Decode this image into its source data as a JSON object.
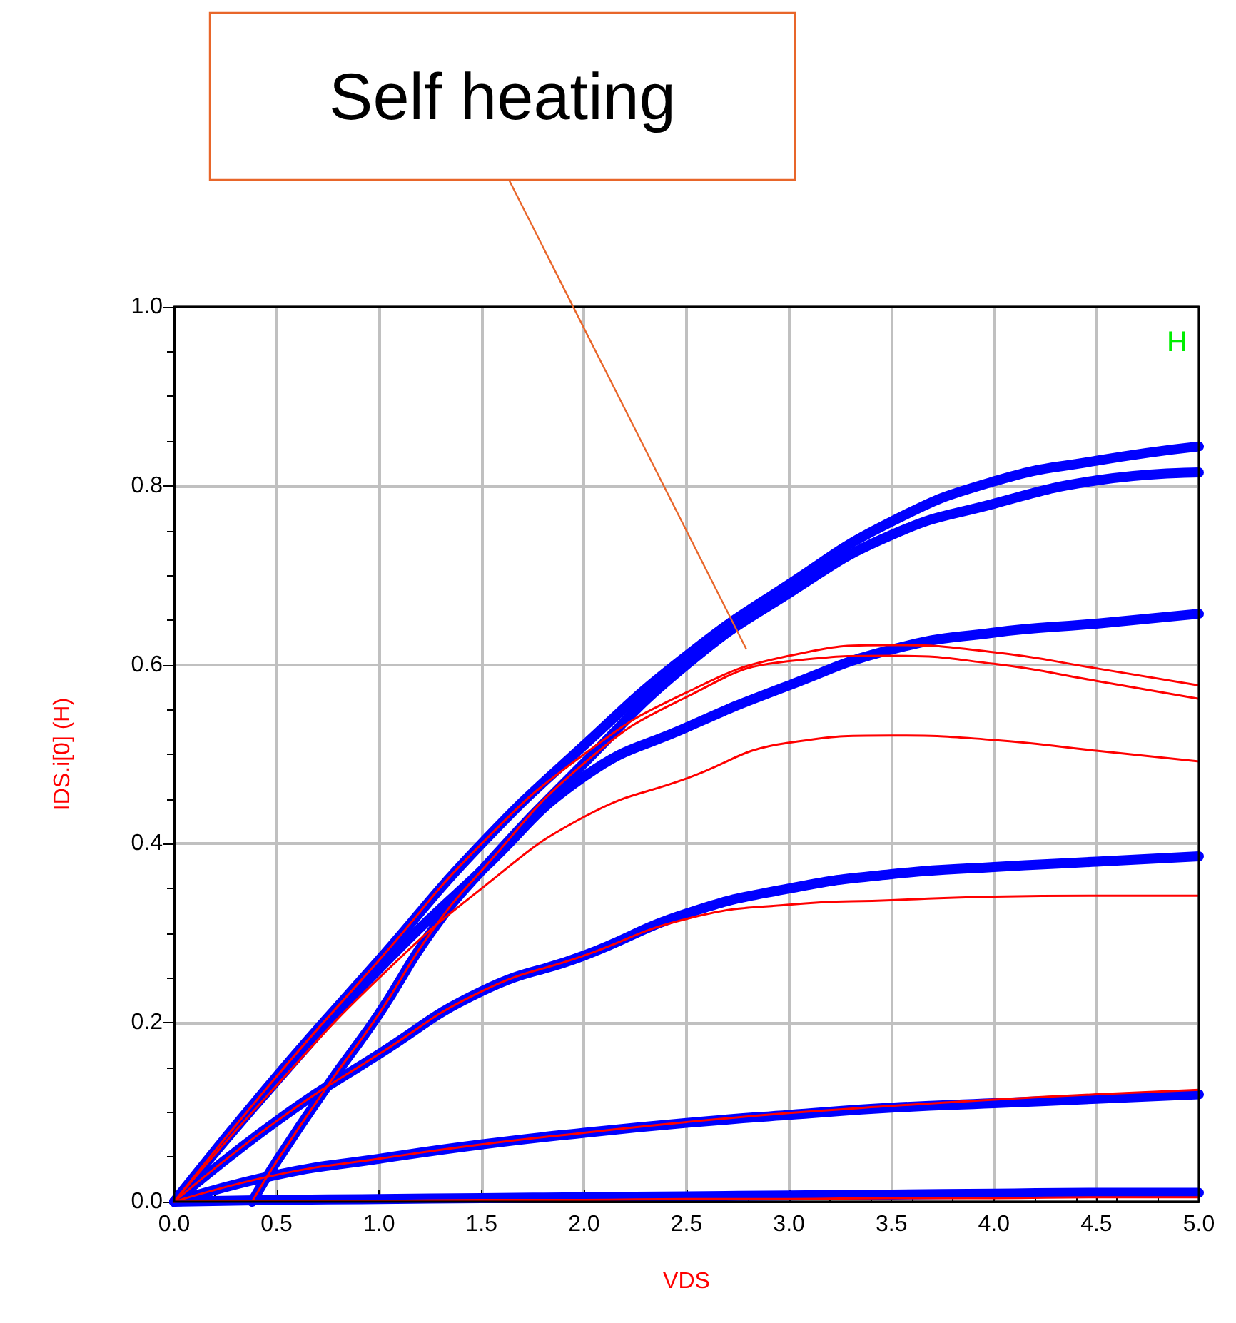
{
  "chart_data": {
    "type": "line",
    "xlabel": "VDS",
    "ylabel": "IDS.i[0] (H)",
    "x": [
      0,
      0.5,
      1,
      1.5,
      2,
      2.5,
      3,
      3.5,
      4,
      4.5,
      5
    ],
    "series": [
      {
        "color": "#0000ff",
        "values": [
          0,
          0.14,
          0.27,
          0.4,
          0.51,
          0.61,
          0.69,
          0.76,
          0.805,
          0.828,
          0.844
        ]
      },
      {
        "color": "#0000ff",
        "x": [
          0.38,
          0.5,
          0.75,
          1,
          1.25,
          1.5,
          2,
          2.5,
          3,
          3.5,
          4,
          4.5,
          5
        ],
        "values": [
          0,
          0.045,
          0.13,
          0.21,
          0.3,
          0.37,
          0.49,
          0.6,
          0.68,
          0.745,
          0.78,
          0.806,
          0.815
        ]
      },
      {
        "color": "#0000ff",
        "values": [
          0,
          0.135,
          0.26,
          0.37,
          0.475,
          0.53,
          0.577,
          0.617,
          0.636,
          0.646,
          0.657
        ]
      },
      {
        "color": "#0000ff",
        "values": [
          0,
          0.09,
          0.165,
          0.235,
          0.275,
          0.322,
          0.35,
          0.366,
          0.374,
          0.38,
          0.386
        ]
      },
      {
        "color": "#0000ff",
        "values": [
          0,
          0.03,
          0.048,
          0.064,
          0.077,
          0.088,
          0.097,
          0.105,
          0.11,
          0.115,
          0.12
        ]
      },
      {
        "color": "#0000ff",
        "values": [
          0,
          0.002,
          0.003,
          0.004,
          0.005,
          0.006,
          0.007,
          0.008,
          0.009,
          0.01,
          0.01
        ]
      },
      {
        "color": "#ff0000",
        "values": [
          0,
          0.14,
          0.27,
          0.4,
          0.5,
          0.569,
          0.61,
          0.622,
          0.614,
          0.596,
          0.577
        ]
      },
      {
        "color": "#ff0000",
        "x": [
          0.38,
          0.5,
          0.75,
          1,
          1.25,
          1.5,
          2,
          2.5,
          3,
          3.5,
          4,
          4.5,
          5
        ],
        "values": [
          0,
          0.045,
          0.13,
          0.21,
          0.3,
          0.37,
          0.49,
          0.564,
          0.604,
          0.61,
          0.601,
          0.582,
          0.562
        ]
      },
      {
        "color": "#ff0000",
        "values": [
          0,
          0.13,
          0.25,
          0.35,
          0.43,
          0.473,
          0.513,
          0.521,
          0.516,
          0.504,
          0.492
        ]
      },
      {
        "color": "#ff0000",
        "values": [
          0,
          0.09,
          0.165,
          0.235,
          0.275,
          0.316,
          0.332,
          0.337,
          0.341,
          0.342,
          0.342
        ]
      },
      {
        "color": "#ff0000",
        "values": [
          0,
          0.03,
          0.048,
          0.064,
          0.077,
          0.089,
          0.099,
          0.107,
          0.114,
          0.12,
          0.125
        ]
      },
      {
        "color": "#ff0000",
        "values": [
          0,
          0.001,
          0.001,
          0.002,
          0.002,
          0.003,
          0.003,
          0.004,
          0.004,
          0.005,
          0.005
        ]
      }
    ],
    "xlim": [
      0,
      5
    ],
    "ylim": [
      0,
      1
    ],
    "xticks": [
      {
        "value": 0,
        "label": "0.0"
      },
      {
        "value": 0.5,
        "label": "0.5"
      },
      {
        "value": 1,
        "label": "1.0"
      },
      {
        "value": 1.5,
        "label": "1.5"
      },
      {
        "value": 2,
        "label": "2.0"
      },
      {
        "value": 2.5,
        "label": "2.5"
      },
      {
        "value": 3,
        "label": "3.0"
      },
      {
        "value": 3.5,
        "label": "3.5"
      },
      {
        "value": 4,
        "label": "4.0"
      },
      {
        "value": 4.5,
        "label": "4.5"
      },
      {
        "value": 5,
        "label": "5.0"
      }
    ],
    "yticks": [
      {
        "value": 0,
        "label": "0.0"
      },
      {
        "value": 0.2,
        "label": "0.2"
      },
      {
        "value": 0.4,
        "label": "0.4"
      },
      {
        "value": 0.6,
        "label": "0.6"
      },
      {
        "value": 0.8,
        "label": "0.8"
      },
      {
        "value": 1,
        "label": "1.0"
      }
    ],
    "grid": true,
    "marker": "none",
    "line_style": "solid",
    "annotations": [
      "Self heating",
      "H"
    ]
  }
}
